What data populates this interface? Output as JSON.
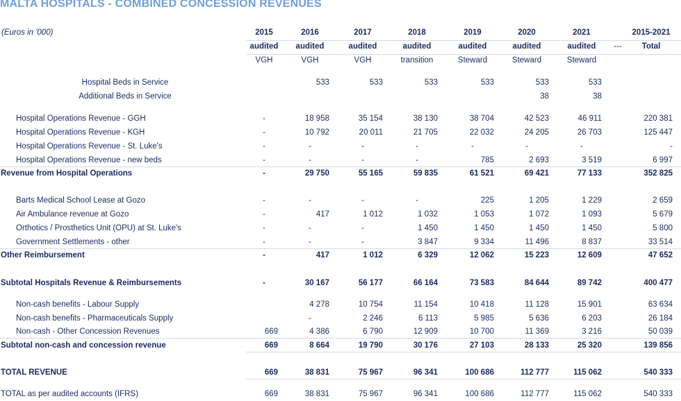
{
  "title": "MALTA HOSPITALS - COMBINED CONCESSION REVENUES",
  "note": "(Euros in '000)",
  "columns": [
    {
      "year": "2015",
      "status": "audited",
      "operator": "VGH"
    },
    {
      "year": "2016",
      "status": "audited",
      "operator": "VGH"
    },
    {
      "year": "2017",
      "status": "audited",
      "operator": "VGH"
    },
    {
      "year": "2018",
      "status": "audited",
      "operator": "transition"
    },
    {
      "year": "2019",
      "status": "audited",
      "operator": "Steward"
    },
    {
      "year": "2020",
      "status": "audited",
      "operator": "Steward"
    },
    {
      "year": "2021",
      "status": "audited",
      "operator": "Steward"
    },
    {
      "year": "2015-2021",
      "status": "Total",
      "operator": ""
    }
  ],
  "dash_marker": "---",
  "rows": [
    {
      "label": "Hospital Beds in Service",
      "style": "center",
      "values": [
        "",
        "533",
        "533",
        "533",
        "533",
        "533",
        "533",
        ""
      ]
    },
    {
      "label": "Additional Beds in Service",
      "style": "center",
      "values": [
        "",
        "",
        "",
        "",
        "",
        "38",
        "38",
        ""
      ]
    },
    {
      "label": "Hospital Operations Revenue - GGH",
      "style": "indent",
      "values": [
        "-",
        "18 958",
        "35 154",
        "38 130",
        "38 704",
        "42 523",
        "46 911",
        "220 381"
      ]
    },
    {
      "label": "Hospital Operations Revenue - KGH",
      "style": "indent",
      "values": [
        "-",
        "10 792",
        "20 011",
        "21 705",
        "22 032",
        "24 205",
        "26 703",
        "125 447"
      ]
    },
    {
      "label": "Hospital Operations Revenue - St. Luke's",
      "style": "indent",
      "values": [
        "-",
        "-",
        "-",
        "-",
        "-",
        "-",
        "-",
        "-"
      ]
    },
    {
      "label": "Hospital Operations Revenue - new beds",
      "style": "indent",
      "values": [
        "-",
        "-",
        "-",
        "-",
        "785",
        "2 693",
        "3 519",
        "6 997"
      ]
    },
    {
      "label": "Revenue from Hospital Operations",
      "style": "bold",
      "values": [
        "-",
        "29 750",
        "55 165",
        "59 835",
        "61 521",
        "69 421",
        "77 133",
        "352 825"
      ]
    },
    {
      "label": "Barts Medical School Lease at Gozo",
      "style": "indent",
      "values": [
        "-",
        "-",
        "-",
        "-",
        "225",
        "1 205",
        "1 229",
        "2 659"
      ]
    },
    {
      "label": "Air Ambulance revenue at Gozo",
      "style": "indent",
      "values": [
        "-",
        "417",
        "1 012",
        "1 032",
        "1 053",
        "1 072",
        "1 093",
        "5 679"
      ]
    },
    {
      "label": "Orthotics / Prosthetics Unit (OPU) at St. Luke's",
      "style": "indent",
      "values": [
        "-",
        "-",
        "-",
        "1 450",
        "1 450",
        "1 450",
        "1 450",
        "5 800"
      ]
    },
    {
      "label": "Government Settlements - other",
      "style": "indent",
      "values": [
        "-",
        "-",
        "-",
        "3 847",
        "9 334",
        "11 496",
        "8 837",
        "33 514"
      ]
    },
    {
      "label": "Other Reimbursement",
      "style": "bold",
      "values": [
        "-",
        "417",
        "1 012",
        "6 329",
        "12 062",
        "15 223",
        "12 609",
        "47 652"
      ]
    },
    {
      "label": "Subtotal Hospitals Revenue & Reimbursements",
      "style": "bold",
      "values": [
        "-",
        "30 167",
        "56 177",
        "66 164",
        "73 583",
        "84 644",
        "89 742",
        "400 477"
      ]
    },
    {
      "label": "Non-cash benefits - Labour Supply",
      "style": "indent",
      "values": [
        "",
        "4 278",
        "10 754",
        "11 154",
        "10 418",
        "11 128",
        "15 901",
        "63 634"
      ]
    },
    {
      "label": "Non-cash benefits - Pharmaceuticals Supply",
      "style": "indent",
      "values": [
        "",
        "-",
        "2 246",
        "6 113",
        "5 985",
        "5 636",
        "6 203",
        "26 184"
      ]
    },
    {
      "label": "Non-cash - Other Concession Revenues",
      "style": "indent",
      "values": [
        "669",
        "4 386",
        "6 790",
        "12 909",
        "10 700",
        "11 369",
        "3 216",
        "50 039"
      ]
    },
    {
      "label": "Subtotal non-cash and concession revenue",
      "style": "bold",
      "values": [
        "669",
        "8 664",
        "19 790",
        "30 176",
        "27 103",
        "28 133",
        "25 320",
        "139 856"
      ]
    },
    {
      "label": "TOTAL REVENUE",
      "style": "bold",
      "values": [
        "669",
        "38 831",
        "75 967",
        "96 341",
        "100 686",
        "112 777",
        "115 062",
        "540 333"
      ]
    },
    {
      "label": "TOTAL as per audited accounts (IFRS)",
      "style": "plain",
      "values": [
        "669",
        "38 831",
        "75 967",
        "96 341",
        "100 686",
        "112 777",
        "115 062",
        "540 333"
      ]
    }
  ]
}
